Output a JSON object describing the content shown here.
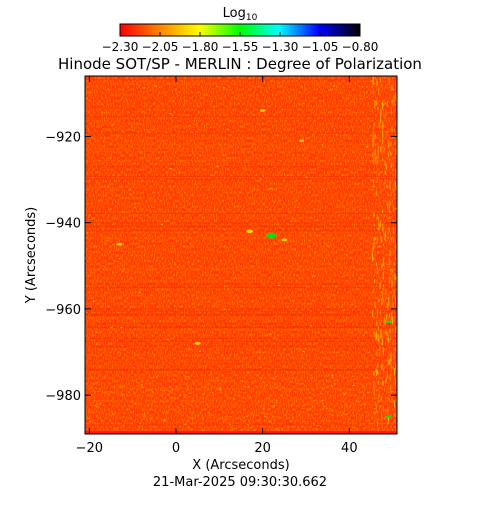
{
  "colorbar": {
    "label": "Log",
    "label_subscript": "10",
    "ticks": [
      "-2.30",
      "-2.05",
      "-1.80",
      "-1.55",
      "-1.30",
      "-1.05",
      "-0.80"
    ],
    "min": -2.3,
    "max": -0.8
  },
  "title": "Hinode SOT/SP - MERLIN : Degree of Polarization",
  "date": "21-Mar-2025 09:30:30.662",
  "chart_data": {
    "type": "heatmap",
    "xlabel": "X (Arcseconds)",
    "ylabel": "Y (Arcseconds)",
    "xlim": [
      -21,
      51
    ],
    "ylim": [
      -989,
      -906
    ],
    "xticks": [
      {
        "value": -20,
        "label": "-20"
      },
      {
        "value": 0,
        "label": "0"
      },
      {
        "value": 20,
        "label": "20"
      },
      {
        "value": 40,
        "label": "40"
      }
    ],
    "yticks": [
      {
        "value": -920,
        "label": "-920"
      },
      {
        "value": -940,
        "label": "-940"
      },
      {
        "value": -960,
        "label": "-960"
      },
      {
        "value": -980,
        "label": "-980"
      }
    ],
    "colormap": [
      "#ff0000",
      "#ff8000",
      "#ffff00",
      "#00ff00",
      "#00ffff",
      "#0000ff",
      "#000000"
    ],
    "background_value": -2.2
  }
}
